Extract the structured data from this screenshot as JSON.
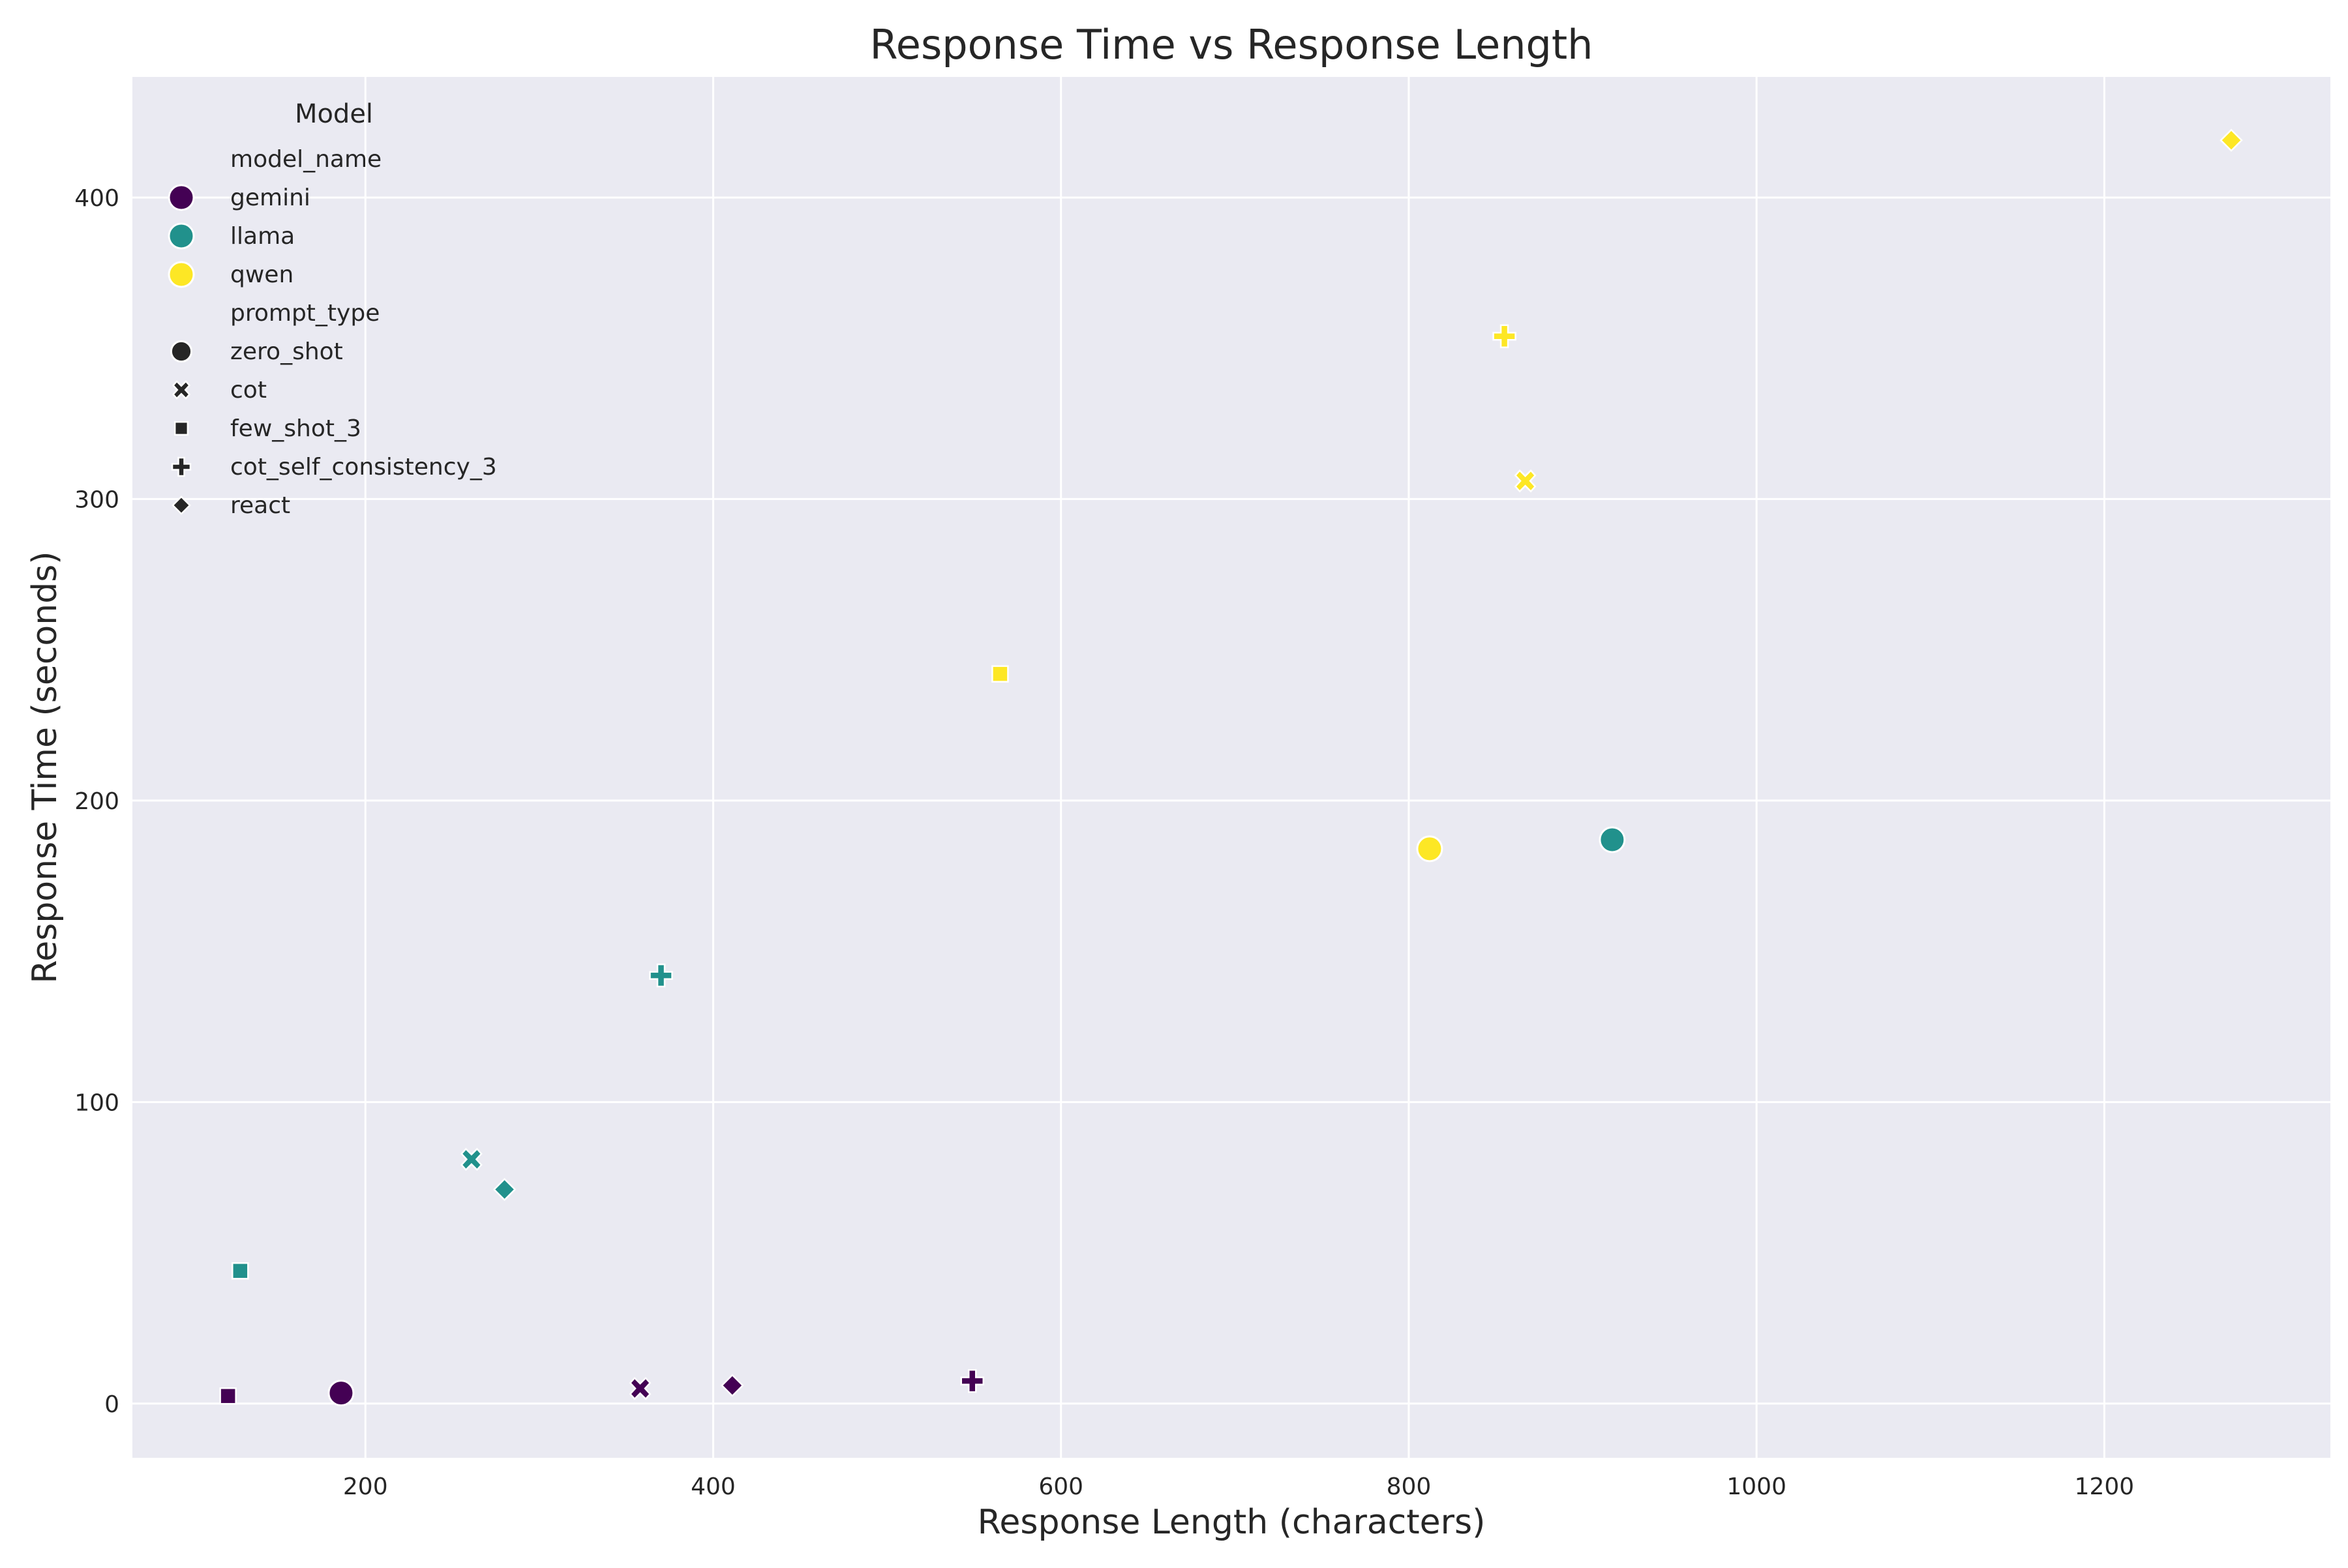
{
  "chart_data": {
    "type": "scatter",
    "title": "Response Time vs Response Length",
    "xlabel": "Response Length (characters)",
    "ylabel": "Response Time (seconds)",
    "xlim": [
      66,
      1330
    ],
    "ylim": [
      -18,
      440
    ],
    "xticks": [
      200,
      400,
      600,
      800,
      1000,
      1200
    ],
    "yticks": [
      0,
      100,
      200,
      300,
      400
    ],
    "grid": true,
    "legend": {
      "position": "upper-left",
      "title": "Model",
      "hue_header": "model_name",
      "style_header": "prompt_type",
      "models": [
        {
          "name": "gemini",
          "color": "#440154"
        },
        {
          "name": "llama",
          "color": "#21918c"
        },
        {
          "name": "qwen",
          "color": "#fde725"
        }
      ],
      "prompt_types": [
        {
          "name": "zero_shot",
          "marker": "circle"
        },
        {
          "name": "cot",
          "marker": "x"
        },
        {
          "name": "few_shot_3",
          "marker": "square"
        },
        {
          "name": "cot_self_consistency_3",
          "marker": "plus"
        },
        {
          "name": "react",
          "marker": "diamond"
        }
      ]
    },
    "points": [
      {
        "model": "gemini",
        "prompt_type": "zero_shot",
        "x": 186,
        "y": 3.5
      },
      {
        "model": "gemini",
        "prompt_type": "cot",
        "x": 358,
        "y": 5
      },
      {
        "model": "gemini",
        "prompt_type": "few_shot_3",
        "x": 121,
        "y": 2.5
      },
      {
        "model": "gemini",
        "prompt_type": "cot_self_consistency_3",
        "x": 549,
        "y": 7.5
      },
      {
        "model": "gemini",
        "prompt_type": "react",
        "x": 411,
        "y": 6
      },
      {
        "model": "llama",
        "prompt_type": "zero_shot",
        "x": 917,
        "y": 187
      },
      {
        "model": "llama",
        "prompt_type": "cot",
        "x": 261,
        "y": 81
      },
      {
        "model": "llama",
        "prompt_type": "few_shot_3",
        "x": 128,
        "y": 44
      },
      {
        "model": "llama",
        "prompt_type": "cot_self_consistency_3",
        "x": 370,
        "y": 142
      },
      {
        "model": "llama",
        "prompt_type": "react",
        "x": 280,
        "y": 71
      },
      {
        "model": "qwen",
        "prompt_type": "zero_shot",
        "x": 812,
        "y": 184
      },
      {
        "model": "qwen",
        "prompt_type": "cot",
        "x": 867,
        "y": 306
      },
      {
        "model": "qwen",
        "prompt_type": "few_shot_3",
        "x": 565,
        "y": 242
      },
      {
        "model": "qwen",
        "prompt_type": "cot_self_consistency_3",
        "x": 855,
        "y": 354
      },
      {
        "model": "qwen",
        "prompt_type": "react",
        "x": 1273,
        "y": 419
      }
    ]
  }
}
